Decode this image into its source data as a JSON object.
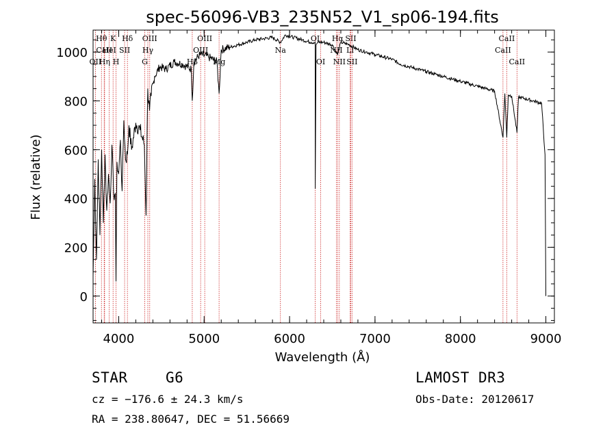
{
  "chart_data": {
    "type": "line",
    "title": "spec-56096-VB3_235N52_V1_sp06-194.fits",
    "xlabel": "Wavelength (Å)",
    "ylabel": "Flux (relative)",
    "xlim": [
      3700,
      9100
    ],
    "ylim": [
      -110,
      1090
    ],
    "xticks": [
      4000,
      5000,
      6000,
      7000,
      8000,
      9000
    ],
    "yticks": [
      0,
      200,
      400,
      600,
      800,
      1000
    ],
    "xtick_labels": [
      "4000",
      "5000",
      "6000",
      "7000",
      "8000",
      "9000"
    ],
    "ytick_labels": [
      "0",
      "200",
      "400",
      "600",
      "800",
      "1000"
    ],
    "grid": false,
    "series": [
      {
        "name": "flux",
        "x": [
          3700,
          3720,
          3740,
          3760,
          3780,
          3800,
          3820,
          3840,
          3860,
          3880,
          3900,
          3920,
          3940,
          3960,
          3968,
          3980,
          4000,
          4020,
          4040,
          4060,
          4080,
          4102,
          4120,
          4150,
          4200,
          4250,
          4300,
          4320,
          4340,
          4361,
          4380,
          4420,
          4480,
          4550,
          4650,
          4750,
          4850,
          4861,
          4880,
          4950,
          5050,
          5150,
          5175,
          5200,
          5300,
          5400,
          5500,
          5600,
          5700,
          5800,
          5893,
          5950,
          6050,
          6150,
          6250,
          6300,
          6300.5,
          6310,
          6330,
          6400,
          6500,
          6563,
          6600,
          6700,
          6800,
          6900,
          7000,
          7100,
          7200,
          7300,
          7400,
          7500,
          7600,
          7700,
          7800,
          7900,
          8000,
          8100,
          8200,
          8300,
          8400,
          8498,
          8520,
          8542,
          8560,
          8600,
          8662,
          8680,
          8750,
          8850,
          8950,
          8990,
          9000
        ],
        "values": [
          80,
          480,
          150,
          560,
          250,
          600,
          300,
          580,
          350,
          500,
          380,
          620,
          420,
          420,
          60,
          550,
          500,
          640,
          430,
          720,
          560,
          580,
          700,
          600,
          710,
          680,
          620,
          330,
          850,
          760,
          820,
          900,
          940,
          930,
          960,
          950,
          930,
          800,
          960,
          990,
          980,
          960,
          830,
          1010,
          1020,
          1030,
          1040,
          1050,
          1055,
          1060,
          1040,
          1070,
          1060,
          1050,
          1040,
          1040,
          440,
          1030,
          1040,
          1040,
          1030,
          990,
          1040,
          1030,
          1010,
          1000,
          990,
          980,
          970,
          950,
          940,
          930,
          920,
          910,
          900,
          890,
          880,
          870,
          860,
          850,
          840,
          650,
          830,
          650,
          825,
          820,
          670,
          815,
          810,
          800,
          790,
          580,
          0
        ]
      }
    ],
    "line_markers": [
      {
        "label": "Hθ",
        "x": 3798,
        "row": 1
      },
      {
        "label": "CaII",
        "x": 3830,
        "row": 2
      },
      {
        "label": "OII",
        "x": 3727,
        "row": 3
      },
      {
        "label": "K",
        "x": 3934,
        "row": 1
      },
      {
        "label": "HeI",
        "x": 3889,
        "row": 2
      },
      {
        "label": "Hη",
        "x": 3835,
        "row": 3
      },
      {
        "label": "Hδ",
        "x": 4102,
        "row": 1
      },
      {
        "label": "SII",
        "x": 4069,
        "row": 2
      },
      {
        "label": "H",
        "x": 3969,
        "row": 3
      },
      {
        "label": "OIII",
        "x": 4363,
        "row": 1
      },
      {
        "label": "Hγ",
        "x": 4341,
        "row": 2
      },
      {
        "label": "G",
        "x": 4305,
        "row": 3
      },
      {
        "label": "OIII",
        "x": 5007,
        "row": 1
      },
      {
        "label": "OIII",
        "x": 4959,
        "row": 2
      },
      {
        "label": "Hβ",
        "x": 4861,
        "row": 3
      },
      {
        "label": "Mg",
        "x": 5175,
        "row": 3
      },
      {
        "label": "Na",
        "x": 5893,
        "row": 2
      },
      {
        "label": "OI",
        "x": 6300,
        "row": 1
      },
      {
        "label": "OI",
        "x": 6364,
        "row": 3
      },
      {
        "label": "Hα",
        "x": 6563,
        "row": 1
      },
      {
        "label": "NII",
        "x": 6548,
        "row": 2
      },
      {
        "label": "NII",
        "x": 6583,
        "row": 3
      },
      {
        "label": "SII",
        "x": 6716,
        "row": 1
      },
      {
        "label": "Li",
        "x": 6708,
        "row": 2
      },
      {
        "label": "SII",
        "x": 6731,
        "row": 3
      },
      {
        "label": "CaII",
        "x": 8542,
        "row": 1
      },
      {
        "label": "CaII",
        "x": 8498,
        "row": 2
      },
      {
        "label": "CaII",
        "x": 8662,
        "row": 3
      }
    ]
  },
  "info": {
    "object_class": "STAR",
    "subclass": "G6",
    "survey": "LAMOST DR3",
    "redshift_line": "cz = −176.6 ± 24.3 km/s",
    "obs_date_line": "Obs-Date: 20120617",
    "coords_line": "RA = 238.80647, DEC =  51.56669"
  },
  "colors": {
    "spectrum": "#000000",
    "marker_lines": "#cc2222",
    "axes": "#000000"
  }
}
